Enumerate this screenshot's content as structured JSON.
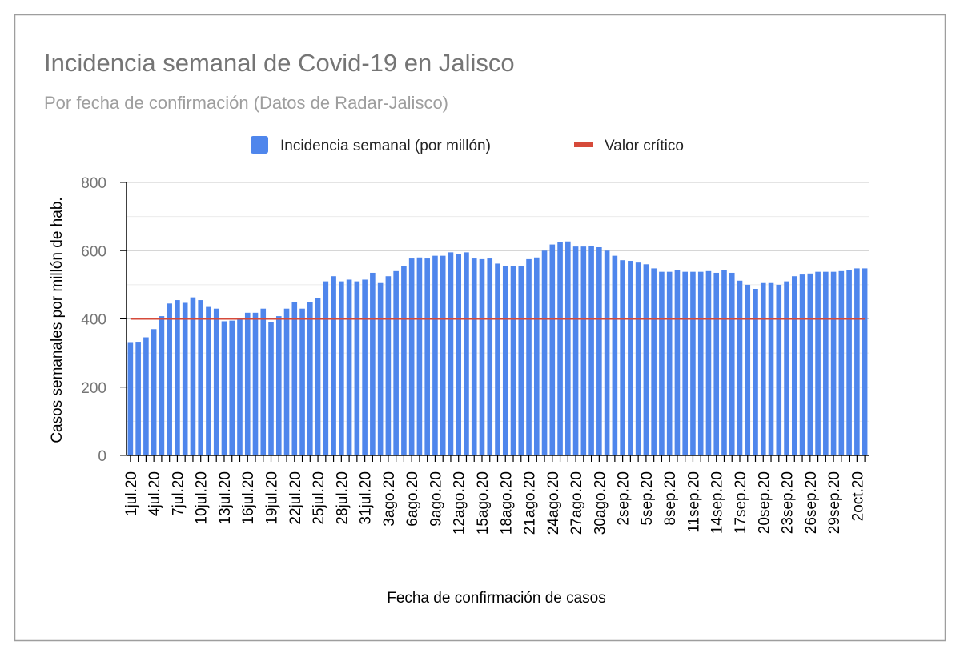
{
  "chart_data": {
    "type": "bar",
    "title": "Incidencia semanal de Covid-19 en Jalisco",
    "subtitle": "Por fecha de confirmación (Datos de  Radar-Jalisco)",
    "x_label": "Fecha de confirmación de casos",
    "y_label": "Casos semanales por millón de hab.",
    "legend": "top",
    "grid": true,
    "ylim": [
      0,
      800
    ],
    "yticks": [
      0,
      200,
      400,
      600,
      800
    ],
    "minor_yticks": [
      100,
      300,
      500,
      700
    ],
    "categories": [
      "1jul.20",
      null,
      null,
      "4jul.20",
      null,
      null,
      "7jul.20",
      null,
      null,
      "10jul.20",
      null,
      null,
      "13jul.20",
      null,
      null,
      "16jul.20",
      null,
      null,
      "19jul.20",
      null,
      null,
      "22jul.20",
      null,
      null,
      "25jul.20",
      null,
      null,
      "28jul.20",
      null,
      null,
      "31jul.20",
      null,
      null,
      "3ago.20",
      null,
      null,
      "6ago.20",
      null,
      null,
      "9ago.20",
      null,
      null,
      "12ago.20",
      null,
      null,
      "15ago.20",
      null,
      null,
      "18ago.20",
      null,
      null,
      "21ago.20",
      null,
      null,
      "24ago.20",
      null,
      null,
      "27ago.20",
      null,
      null,
      "30ago.20",
      null,
      null,
      "2sep.20",
      null,
      null,
      "5sep.20",
      null,
      null,
      "8sep.20",
      null,
      null,
      "11sep.20",
      null,
      null,
      "14sep.20",
      null,
      null,
      "17sep.20",
      null,
      null,
      "20sep.20",
      null,
      null,
      "23sep.20",
      null,
      null,
      "26sep.20",
      null,
      null,
      "29sep.20",
      null,
      null,
      "2oct.20",
      null
    ],
    "series": [
      {
        "name": "Incidencia semanal (por millón)",
        "color": "#4f86ec",
        "type": "bar",
        "values": [
          332,
          333,
          346,
          370,
          408,
          445,
          455,
          447,
          463,
          455,
          435,
          430,
          393,
          395,
          398,
          418,
          418,
          430,
          390,
          408,
          430,
          450,
          430,
          450,
          460,
          510,
          525,
          510,
          515,
          510,
          515,
          535,
          505,
          525,
          540,
          555,
          577,
          580,
          577,
          585,
          585,
          595,
          590,
          595,
          577,
          575,
          577,
          562,
          555,
          555,
          555,
          575,
          580,
          600,
          618,
          625,
          627,
          612,
          612,
          613,
          610,
          600,
          585,
          572,
          570,
          565,
          560,
          548,
          538,
          538,
          542,
          538,
          538,
          538,
          540,
          535,
          542,
          535,
          512,
          500,
          488,
          505,
          505,
          500,
          510,
          525,
          530,
          533,
          538,
          538,
          538,
          540,
          543,
          548,
          548
        ]
      },
      {
        "name": "Valor crítico",
        "color": "#d64a3a",
        "type": "line",
        "values": [
          400,
          400,
          400,
          400,
          400,
          400,
          400,
          400,
          400,
          400,
          400,
          400,
          400,
          400,
          400,
          400,
          400,
          400,
          400,
          400,
          400,
          400,
          400,
          400,
          400,
          400,
          400,
          400,
          400,
          400,
          400,
          400,
          400,
          400,
          400,
          400,
          400,
          400,
          400,
          400,
          400,
          400,
          400,
          400,
          400,
          400,
          400,
          400,
          400,
          400,
          400,
          400,
          400,
          400,
          400,
          400,
          400,
          400,
          400,
          400,
          400,
          400,
          400,
          400,
          400,
          400,
          400,
          400,
          400,
          400,
          400,
          400,
          400,
          400,
          400,
          400,
          400,
          400,
          400,
          400,
          400,
          400,
          400,
          400,
          400,
          400,
          400,
          400,
          400,
          400,
          400,
          400,
          400,
          400,
          400
        ]
      }
    ]
  }
}
